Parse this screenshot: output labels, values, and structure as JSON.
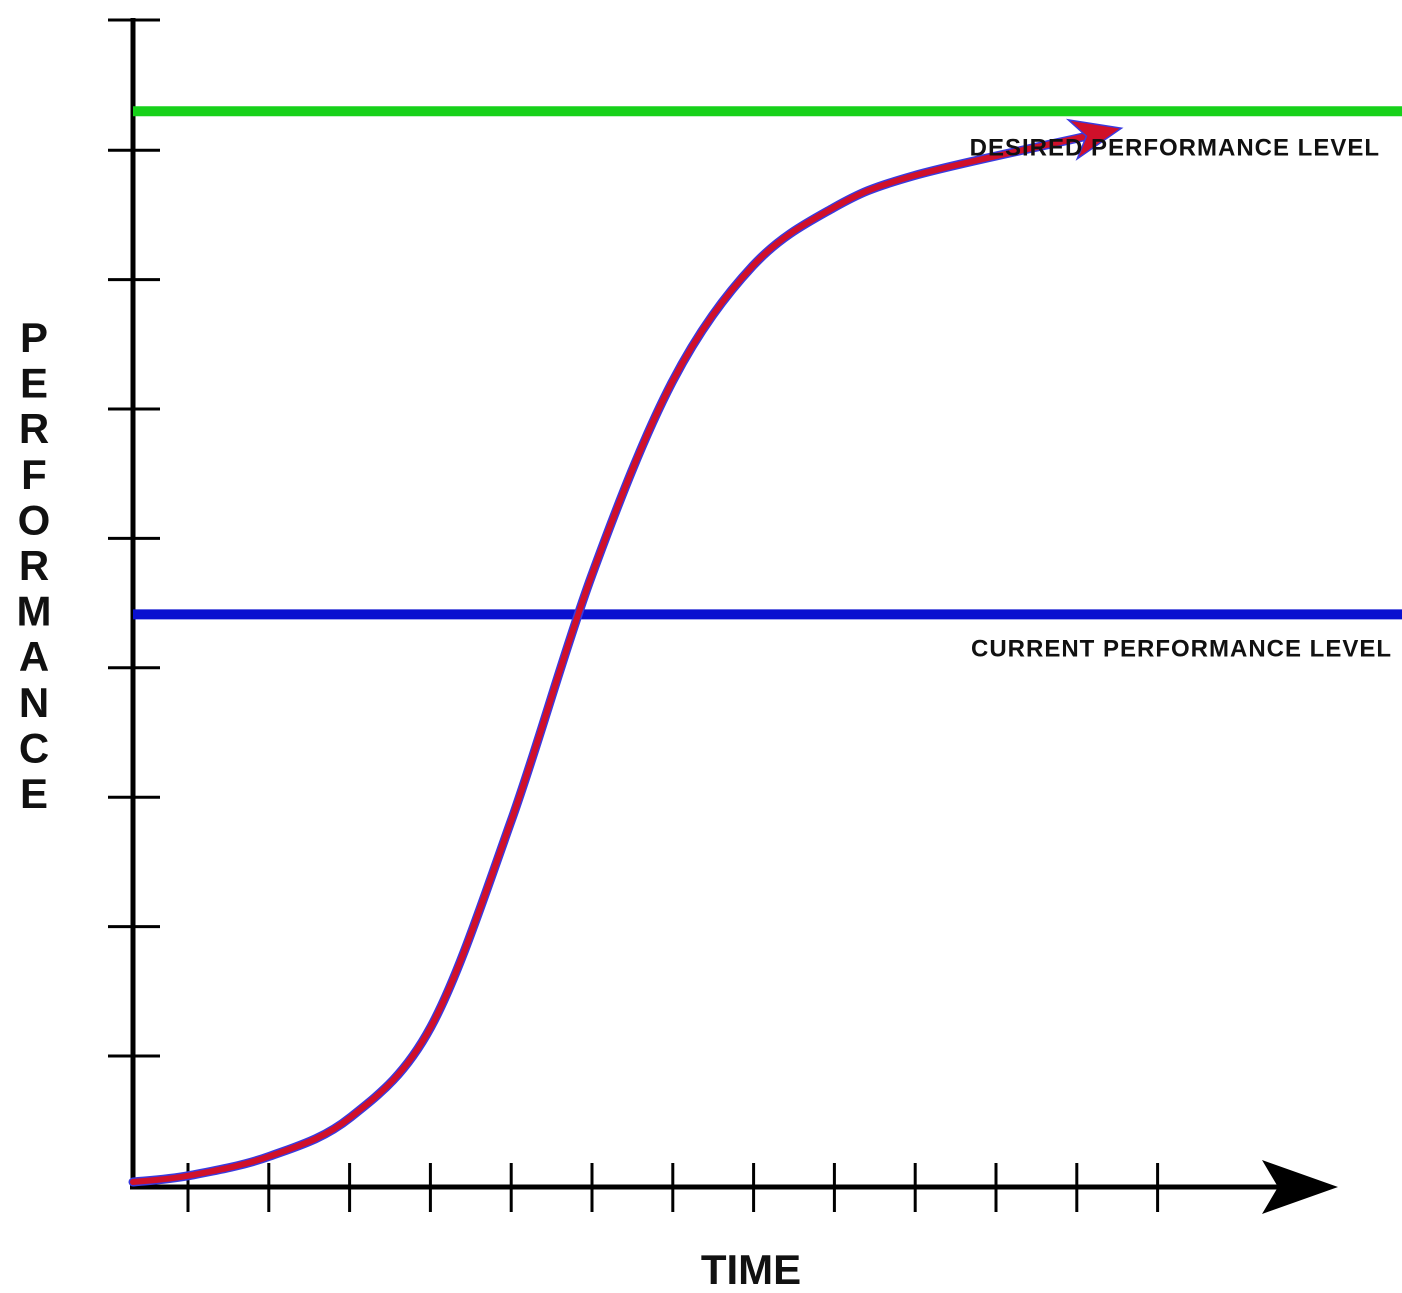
{
  "chart_data": {
    "type": "line",
    "title": "",
    "xlabel": "TIME",
    "ylabel": "PERFORMANCE",
    "xlim": [
      0,
      15
    ],
    "ylim": [
      0,
      8
    ],
    "x_ticks": 13,
    "y_ticks": 8,
    "grid": false,
    "series": [
      {
        "color": "#d0102a",
        "outline_color": "#3a3adf",
        "x": [
          0,
          0.7,
          1.7,
          2.7,
          3.7,
          4.7,
          5.7,
          6.7,
          7.7,
          8.7,
          9.7,
          11.8
        ],
        "y": [
          0.0,
          0.05,
          0.2,
          0.5,
          1.2,
          2.8,
          4.7,
          6.2,
          7.1,
          7.55,
          7.8,
          8.1
        ]
      }
    ],
    "reference_lines": [
      {
        "label": "DESIRED PERFORMANCE LEVEL",
        "y": 8.3,
        "color": "#17d11a"
      },
      {
        "label": "CURRENT PERFORMANCE LEVEL",
        "y": 4.4,
        "color": "#0a10d0"
      }
    ]
  }
}
